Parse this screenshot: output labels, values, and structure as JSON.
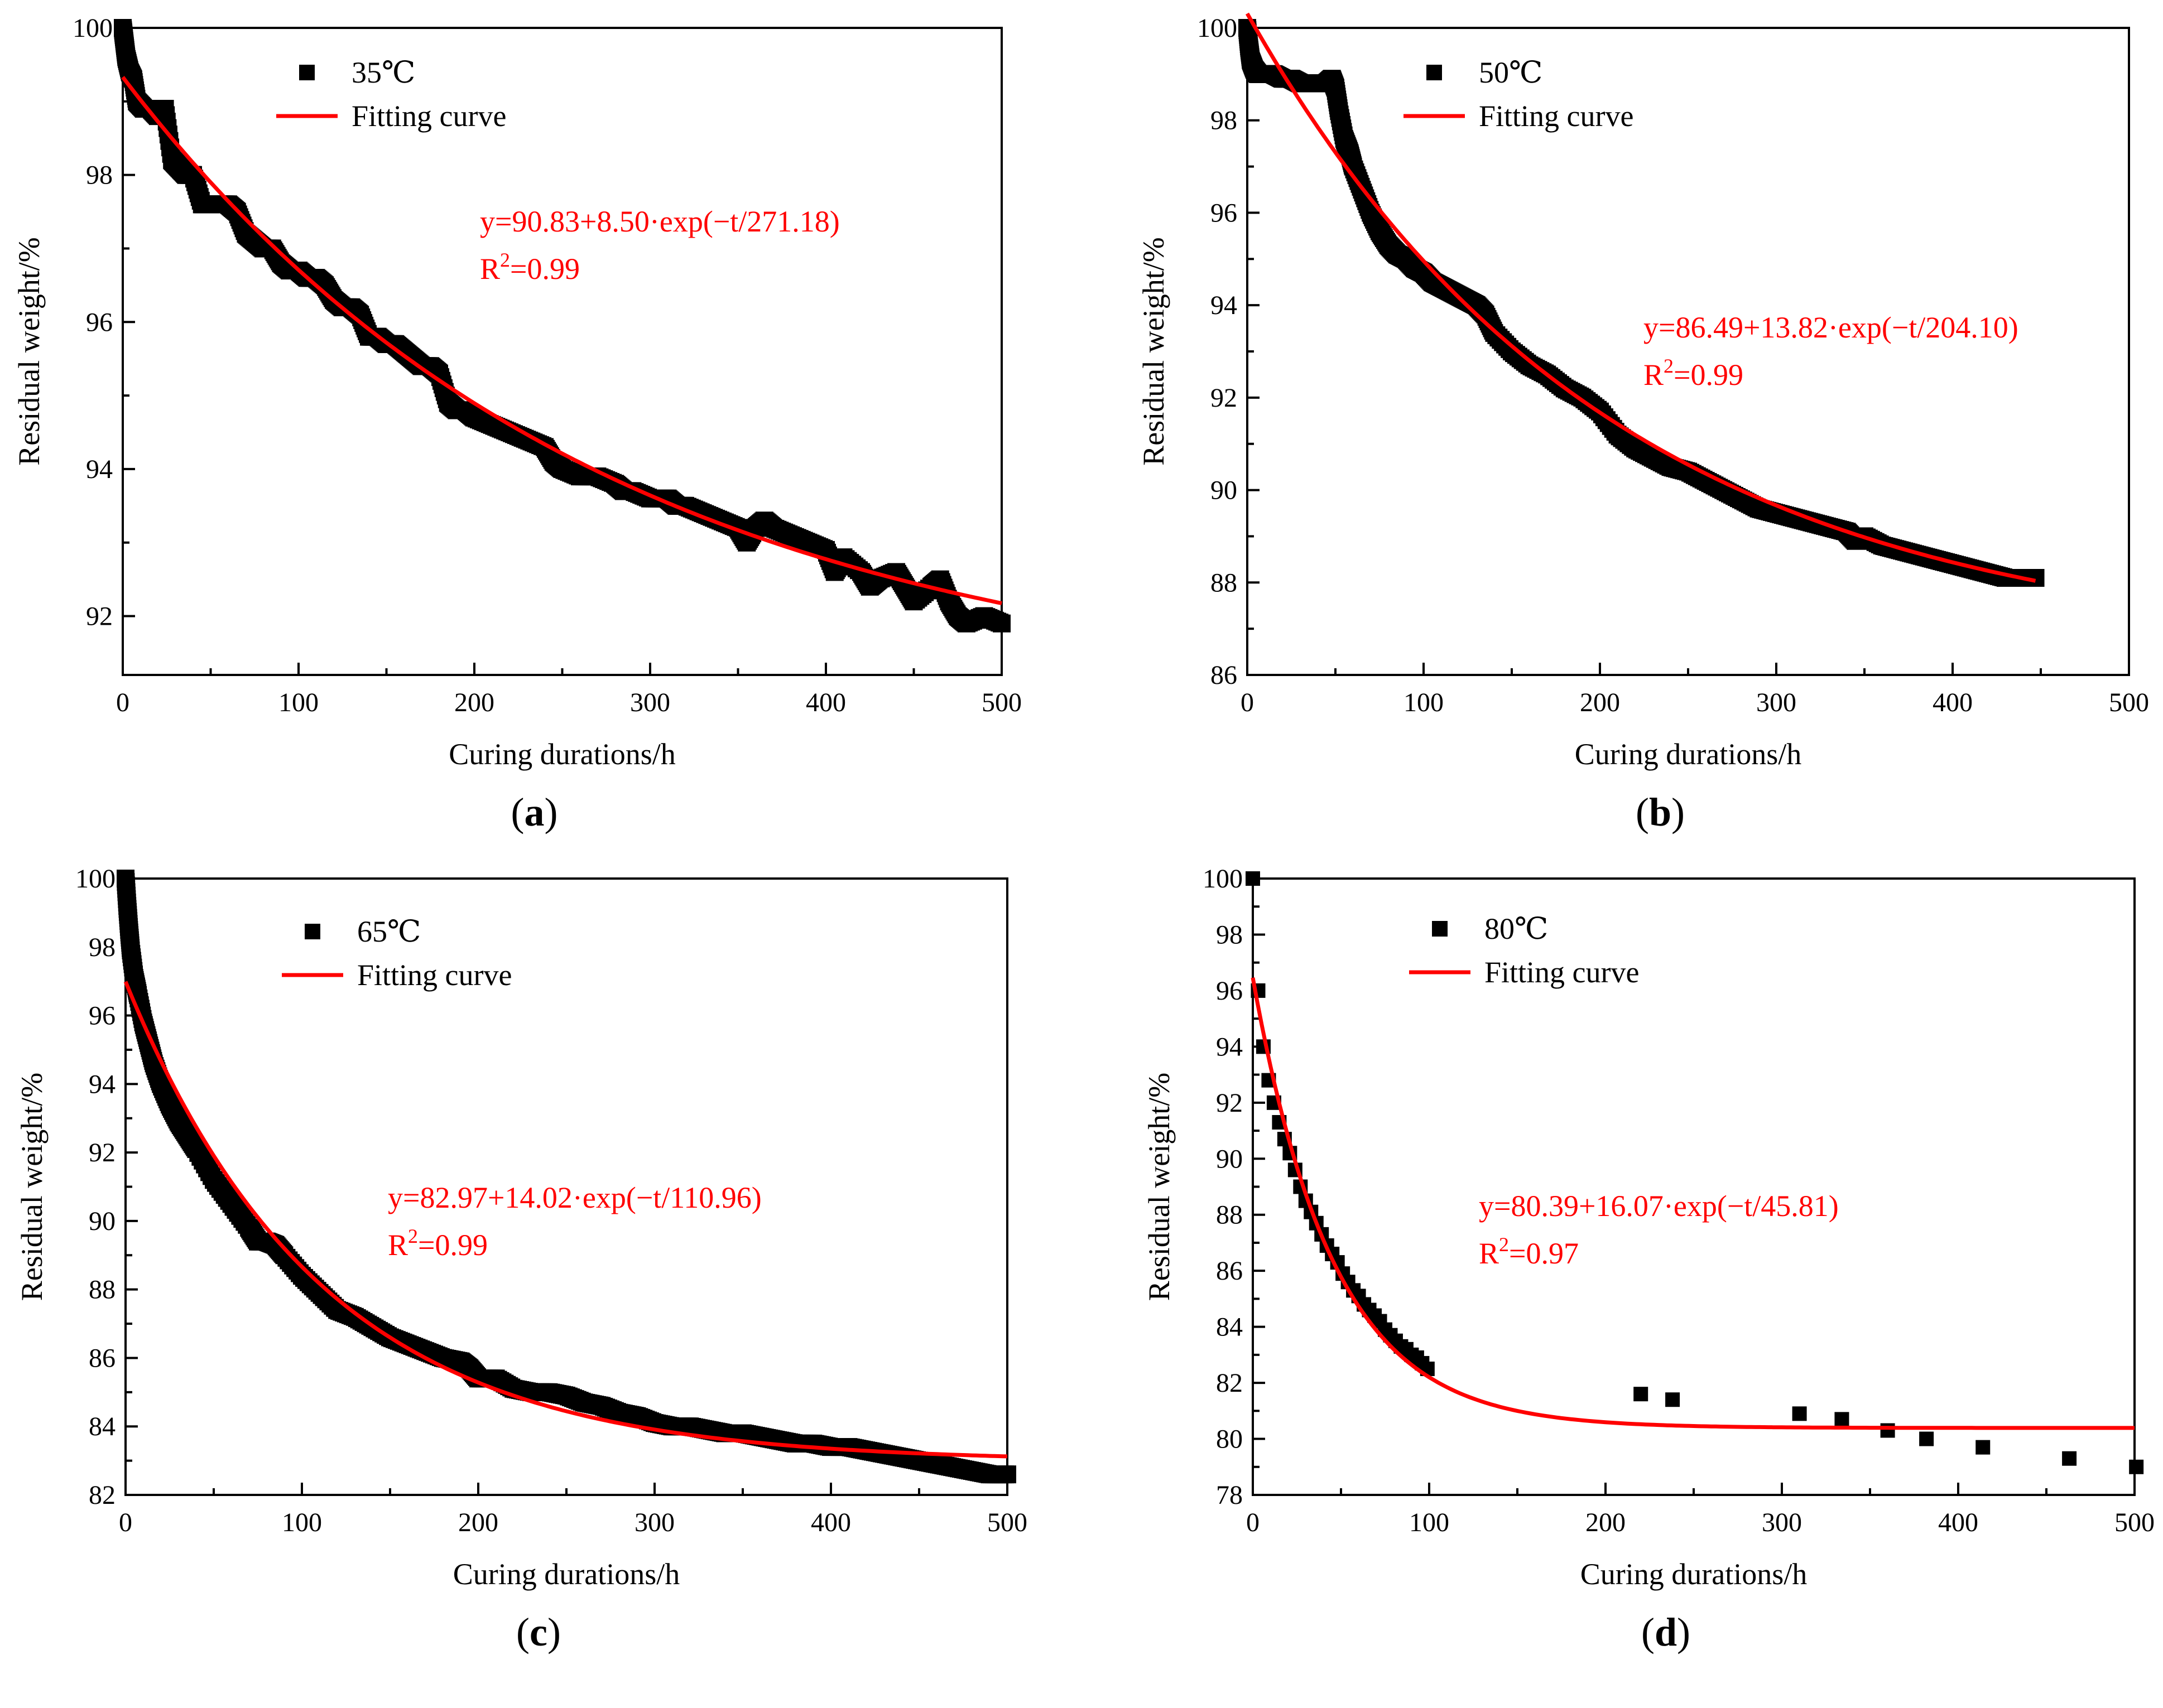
{
  "figure": {
    "colors": {
      "data": "#000000",
      "fit": "#ff0000",
      "equation": "#ff0000",
      "axes": "#000000"
    }
  },
  "chart_data": [
    {
      "type": "scatter",
      "panel_label": "a",
      "title": "",
      "xlabel": "Curing durations/h",
      "ylabel": "Residual weight/%",
      "xlim": [
        0,
        500
      ],
      "ylim": [
        91.2,
        100
      ],
      "xticks": [
        0,
        100,
        200,
        300,
        400,
        500
      ],
      "yticks": [
        92,
        94,
        96,
        98,
        100
      ],
      "x_tick_labels": [
        "0",
        "100",
        "200",
        "300",
        "400",
        "500"
      ],
      "y_tick_labels": [
        "92",
        "94",
        "96",
        "98",
        "100"
      ],
      "legend_position": "top-center",
      "legend": {
        "data_label": "35℃",
        "fit_label": "Fitting curve"
      },
      "equation": {
        "text": "y=90.83+8.50·exp(−t/271.18)",
        "r2_prefix": "R",
        "r2_sup": "2",
        "r2_value": "=0.99"
      },
      "fit": {
        "y0": 90.83,
        "A": 8.5,
        "t": 271.18,
        "x_range": [
          0,
          500
        ]
      },
      "series": [
        {
          "name": "35℃",
          "marker": "square",
          "dense": true,
          "x": [
            0,
            1,
            2,
            4,
            6,
            8,
            12,
            16,
            20,
            24,
            28,
            32,
            36,
            40,
            45,
            50,
            55,
            60,
            65,
            70,
            75,
            80,
            85,
            90,
            95,
            100,
            105,
            110,
            115,
            120,
            125,
            130,
            135,
            140,
            145,
            150,
            155,
            160,
            165,
            170,
            175,
            180,
            185,
            190,
            195,
            200,
            210,
            220,
            230,
            240,
            245,
            250,
            260,
            270,
            280,
            285,
            290,
            300,
            310,
            315,
            320,
            330,
            340,
            350,
            355,
            360,
            365,
            370,
            380,
            390,
            400,
            405,
            410,
            420,
            425,
            430,
            440,
            445,
            450,
            460,
            465,
            470,
            475,
            480,
            490,
            500
          ],
          "y": [
            100,
            99.8,
            99.6,
            99.4,
            99.3,
            99.0,
            98.9,
            98.9,
            98.8,
            98.9,
            98.2,
            98.1,
            98.0,
            98.0,
            97.6,
            97.6,
            97.6,
            97.6,
            97.5,
            97.2,
            97.1,
            97.0,
            97.0,
            96.8,
            96.7,
            96.7,
            96.6,
            96.6,
            96.5,
            96.3,
            96.2,
            96.2,
            96.1,
            95.8,
            95.8,
            95.7,
            95.7,
            95.6,
            95.5,
            95.4,
            95.4,
            95.3,
            94.9,
            94.8,
            94.8,
            94.7,
            94.6,
            94.5,
            94.4,
            94.3,
            94.1,
            94.0,
            93.9,
            93.9,
            93.8,
            93.7,
            93.7,
            93.6,
            93.6,
            93.5,
            93.5,
            93.4,
            93.3,
            93.2,
            93.0,
            93.2,
            93.3,
            93.2,
            93.1,
            93.0,
            92.9,
            92.6,
            92.8,
            92.6,
            92.4,
            92.5,
            92.6,
            92.4,
            92.2,
            92.4,
            92.5,
            92.2,
            92.0,
            91.9,
            92.0,
            91.9
          ]
        }
      ]
    },
    {
      "type": "scatter",
      "panel_label": "b",
      "title": "",
      "xlabel": "Curing durations/h",
      "ylabel": "Residual weight/%",
      "xlim": [
        0,
        500
      ],
      "ylim": [
        86,
        100
      ],
      "xticks": [
        0,
        100,
        200,
        300,
        400,
        500
      ],
      "yticks": [
        86,
        88,
        90,
        92,
        94,
        96,
        98,
        100
      ],
      "x_tick_labels": [
        "0",
        "100",
        "200",
        "300",
        "400",
        "500"
      ],
      "y_tick_labels": [
        "86",
        "88",
        "90",
        "92",
        "94",
        "96",
        "98",
        "100"
      ],
      "legend_position": "top-center",
      "legend": {
        "data_label": "50℃",
        "fit_label": "Fitting curve"
      },
      "equation": {
        "text": "y=86.49+13.82·exp(−t/204.10)",
        "r2_prefix": "R",
        "r2_sup": "2",
        "r2_value": "=0.99"
      },
      "fit": {
        "y0": 86.49,
        "A": 13.82,
        "t": 204.1,
        "x_range": [
          0,
          447
        ]
      },
      "series": [
        {
          "name": "50℃",
          "marker": "square",
          "dense": true,
          "x": [
            0,
            1,
            2,
            4,
            6,
            10,
            15,
            20,
            25,
            30,
            35,
            40,
            45,
            48,
            50,
            52,
            55,
            58,
            60,
            65,
            70,
            75,
            80,
            85,
            90,
            95,
            100,
            105,
            110,
            115,
            120,
            125,
            130,
            135,
            140,
            150,
            160,
            170,
            180,
            190,
            200,
            210,
            220,
            230,
            240,
            250,
            260,
            270,
            280,
            290,
            300,
            310,
            320,
            330,
            340,
            345,
            350,
            360,
            370,
            380,
            390,
            400,
            410,
            420,
            430,
            440,
            447
          ],
          "y": [
            100,
            99.6,
            99.3,
            99.1,
            99.0,
            99.0,
            99.0,
            98.9,
            98.9,
            98.8,
            98.8,
            98.8,
            98.8,
            98.9,
            98.7,
            98.2,
            97.6,
            97.3,
            97.0,
            96.5,
            96.0,
            95.6,
            95.3,
            95.1,
            95.0,
            94.8,
            94.7,
            94.5,
            94.4,
            94.3,
            94.2,
            94.1,
            94.0,
            93.8,
            93.4,
            93.0,
            92.7,
            92.5,
            92.2,
            92.0,
            91.7,
            91.2,
            90.9,
            90.7,
            90.5,
            90.4,
            90.2,
            90.0,
            89.8,
            89.6,
            89.5,
            89.4,
            89.3,
            89.2,
            89.1,
            88.9,
            89.0,
            88.8,
            88.7,
            88.6,
            88.5,
            88.4,
            88.3,
            88.2,
            88.1,
            88.1,
            88.1
          ]
        }
      ]
    },
    {
      "type": "scatter",
      "panel_label": "c",
      "title": "",
      "xlabel": "Curing durations/h",
      "ylabel": "Residual weight/%",
      "xlim": [
        0,
        500
      ],
      "ylim": [
        82,
        100
      ],
      "xticks": [
        0,
        100,
        200,
        300,
        400,
        500
      ],
      "yticks": [
        82,
        84,
        86,
        88,
        90,
        92,
        94,
        96,
        98,
        100
      ],
      "x_tick_labels": [
        "0",
        "100",
        "200",
        "300",
        "400",
        "500"
      ],
      "y_tick_labels": [
        "82",
        "84",
        "86",
        "88",
        "90",
        "92",
        "94",
        "96",
        "98",
        "100"
      ],
      "legend_position": "top-center",
      "legend": {
        "data_label": "65℃",
        "fit_label": "Fitting curve"
      },
      "equation": {
        "text": "y=82.97+14.02·exp(−t/110.96)",
        "r2_prefix": "R",
        "r2_sup": "2",
        "r2_value": "=0.99"
      },
      "fit": {
        "y0": 82.97,
        "A": 14.02,
        "t": 110.96,
        "x_range": [
          0,
          500
        ]
      },
      "series": [
        {
          "name": "65℃",
          "marker": "square",
          "dense": true,
          "x": [
            0,
            1,
            2,
            3,
            5,
            7,
            10,
            13,
            16,
            20,
            25,
            30,
            35,
            40,
            50,
            60,
            70,
            75,
            80,
            85,
            90,
            100,
            110,
            120,
            130,
            140,
            150,
            160,
            170,
            180,
            190,
            195,
            200,
            210,
            220,
            230,
            240,
            250,
            260,
            270,
            280,
            290,
            300,
            310,
            320,
            330,
            340,
            350,
            360,
            370,
            380,
            390,
            400,
            410,
            420,
            430,
            440,
            450,
            460,
            470,
            480,
            490,
            500
          ],
          "y": [
            100,
            99.2,
            98.5,
            97.9,
            97.1,
            96.6,
            95.8,
            95.2,
            94.6,
            94.0,
            93.4,
            92.9,
            92.5,
            92.1,
            91.2,
            90.5,
            89.8,
            89.4,
            89.4,
            89.3,
            89.0,
            88.4,
            87.9,
            87.4,
            87.2,
            86.9,
            86.6,
            86.4,
            86.2,
            86.0,
            85.9,
            85.7,
            85.4,
            85.4,
            85.1,
            85.0,
            85.0,
            84.9,
            84.7,
            84.6,
            84.4,
            84.3,
            84.1,
            84.0,
            84.0,
            83.9,
            83.8,
            83.8,
            83.7,
            83.6,
            83.5,
            83.5,
            83.4,
            83.4,
            83.3,
            83.2,
            83.1,
            83.0,
            82.9,
            82.8,
            82.7,
            82.6,
            82.6
          ]
        }
      ]
    },
    {
      "type": "scatter",
      "panel_label": "d",
      "title": "",
      "xlabel": "Curing durations/h",
      "ylabel": "Residual weight/%",
      "xlim": [
        0,
        500
      ],
      "ylim": [
        78,
        100
      ],
      "xticks": [
        0,
        100,
        200,
        300,
        400,
        500
      ],
      "yticks": [
        78,
        80,
        82,
        84,
        86,
        88,
        90,
        92,
        94,
        96,
        98,
        100
      ],
      "x_tick_labels": [
        "0",
        "100",
        "200",
        "300",
        "400",
        "500"
      ],
      "y_tick_labels": [
        "78",
        "80",
        "82",
        "84",
        "86",
        "88",
        "90",
        "92",
        "94",
        "96",
        "98",
        "100"
      ],
      "legend_position": "top-center",
      "legend": {
        "data_label": "80℃",
        "fit_label": "Fitting curve"
      },
      "equation": {
        "text": "y=80.39+16.07·exp(−t/45.81)",
        "r2_prefix": "R",
        "r2_sup": "2",
        "r2_value": "=0.97"
      },
      "fit": {
        "y0": 80.39,
        "A": 16.07,
        "t": 45.81,
        "x_range": [
          0,
          500
        ]
      },
      "series": [
        {
          "name": "80℃",
          "marker": "square",
          "dense": false,
          "x": [
            0,
            3,
            6,
            9,
            12,
            15,
            18,
            21,
            24,
            27,
            30,
            33,
            36,
            39,
            42,
            45,
            48,
            51,
            54,
            57,
            60,
            63,
            66,
            69,
            72,
            75,
            78,
            81,
            84,
            87,
            90,
            93,
            96,
            99,
            220,
            238,
            310,
            334,
            360,
            382,
            414,
            463,
            501
          ],
          "y": [
            100,
            96.0,
            94.0,
            92.8,
            92.0,
            91.3,
            90.7,
            90.2,
            89.6,
            89.0,
            88.5,
            88.1,
            87.7,
            87.3,
            86.9,
            86.6,
            86.3,
            85.9,
            85.6,
            85.3,
            85.1,
            84.8,
            84.6,
            84.4,
            84.2,
            83.9,
            83.7,
            83.5,
            83.3,
            83.2,
            83.0,
            82.9,
            82.7,
            82.5,
            81.6,
            81.4,
            80.9,
            80.7,
            80.3,
            80.0,
            79.7,
            79.3,
            79.0
          ]
        }
      ]
    }
  ]
}
